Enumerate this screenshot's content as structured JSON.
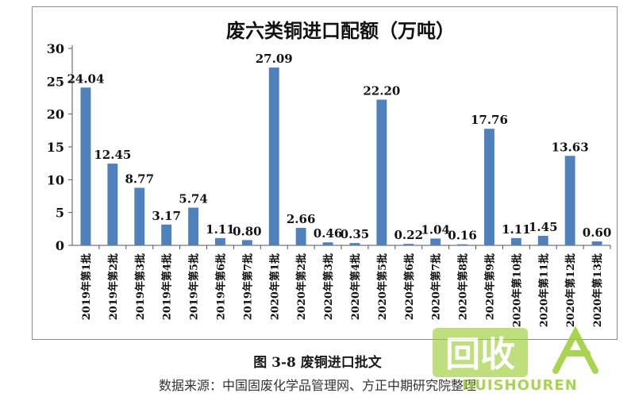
{
  "caption": "图 3-8 废铜进口批文",
  "source": "数据来源：中国固废化学品管理网、方正中期研究院整理",
  "chart_data": {
    "type": "bar",
    "title": "废六类铜进口配额（万吨）",
    "xlabel": "",
    "ylabel": "",
    "ylim": [
      0,
      30
    ],
    "yticks": [
      0,
      5,
      10,
      15,
      20,
      25,
      30
    ],
    "grid": false,
    "legend": "none",
    "bar_color": "#4f81bd",
    "categories": [
      "2019年第1批",
      "2019年第2批",
      "2019年第3批",
      "2019年第4批",
      "2019年第5批",
      "2019年第6批",
      "2019年第7批",
      "2020年第1批",
      "2020年第2批",
      "2020年第3批",
      "2020年第4批",
      "2020年第5批",
      "2020年第6批",
      "2020年第7批",
      "2020年第8批",
      "2020年第9批",
      "2020年第10批",
      "2020年第11批",
      "2020年第12批",
      "2020年第13批"
    ],
    "values": [
      24.04,
      12.45,
      8.77,
      3.17,
      5.74,
      1.11,
      0.8,
      27.09,
      2.66,
      0.46,
      0.35,
      22.2,
      0.22,
      1.04,
      0.16,
      17.76,
      1.11,
      1.45,
      13.63,
      0.6
    ],
    "value_labels": [
      "24.04",
      "12.45",
      "8.77",
      "3.17",
      "5.74",
      "1.11",
      "0.80",
      "27.09",
      "2.66",
      "0.46",
      "0.35",
      "22.20",
      "0.22",
      "1.04",
      "0.16",
      "17.76",
      "1.11",
      "1.45",
      "13.63",
      "0.60"
    ]
  },
  "watermark": {
    "logo_text": "回收",
    "subtext": "HUISHOUREN",
    "color": "#9acd32"
  }
}
